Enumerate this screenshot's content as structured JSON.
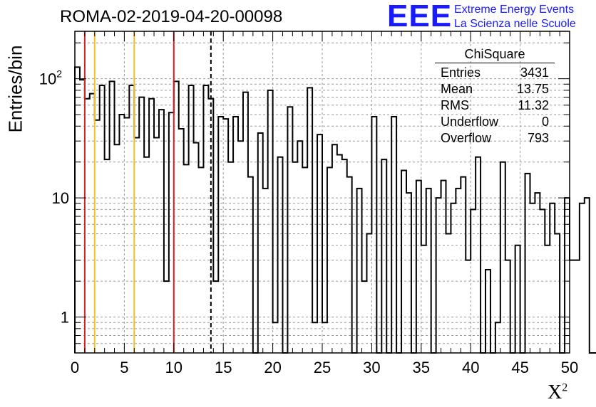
{
  "title": "ROMA-02-2019-04-20-00098",
  "logo": {
    "text": "EEE",
    "line1": "Extreme Energy Events",
    "line2": "La Scienza nelle Scuole",
    "color": "#1a1aff"
  },
  "stats": {
    "title": "ChiSquare",
    "rows": [
      {
        "label": "Entries",
        "value": "3431"
      },
      {
        "label": "Mean",
        "value": "13.75"
      },
      {
        "label": "RMS",
        "value": "11.32"
      },
      {
        "label": "Underflow",
        "value": "0"
      },
      {
        "label": "Overflow",
        "value": "793"
      }
    ]
  },
  "chart_data": {
    "type": "histogram",
    "ylabel": "Entries/bin",
    "xlabel": "X",
    "xlabel_superscript": "2",
    "xlim": [
      0,
      50
    ],
    "ylim": [
      0.5,
      250
    ],
    "ylog": true,
    "grid": true,
    "x_ticks": [
      "0",
      "5",
      "10",
      "15",
      "20",
      "25",
      "30",
      "35",
      "40",
      "45",
      "50"
    ],
    "y_ticks": [
      {
        "value": 1,
        "label": "1"
      },
      {
        "value": 10,
        "label": "10"
      },
      {
        "value": 100,
        "label": "10",
        "exp": "2"
      }
    ],
    "bin_width": 0.5,
    "bin_start": 0,
    "values": [
      125,
      98,
      68,
      75,
      45,
      88,
      21,
      95,
      28,
      50,
      47,
      88,
      32,
      70,
      22,
      68,
      32,
      55,
      2,
      52,
      95,
      38,
      19,
      88,
      29,
      18,
      88,
      68,
      2,
      48,
      46,
      20,
      48,
      30,
      77,
      15,
      0,
      35,
      12,
      80,
      0.9,
      22,
      0,
      58,
      20,
      30,
      18,
      84,
      0.9,
      34,
      0.9,
      18,
      28,
      23,
      21,
      15,
      0,
      12,
      2,
      5,
      48,
      0,
      21,
      0,
      48,
      0,
      17,
      11,
      0,
      14,
      4,
      12,
      0,
      10,
      14,
      5,
      9,
      12,
      15,
      3,
      8,
      22,
      0,
      2.5,
      0,
      0.9,
      20,
      3,
      0,
      4,
      0,
      16,
      9,
      11,
      8,
      4,
      9,
      5,
      0,
      10,
      3,
      3,
      9,
      10,
      0,
      0,
      4
    ]
  },
  "markers": [
    {
      "x": 1,
      "color": "#d42020",
      "style": "solid"
    },
    {
      "x": 2,
      "color": "#f0c020",
      "style": "solid"
    },
    {
      "x": 6,
      "color": "#f0c020",
      "style": "solid"
    },
    {
      "x": 10,
      "color": "#d42020",
      "style": "solid"
    },
    {
      "x": 13.75,
      "color": "#000000",
      "style": "dashed"
    }
  ]
}
